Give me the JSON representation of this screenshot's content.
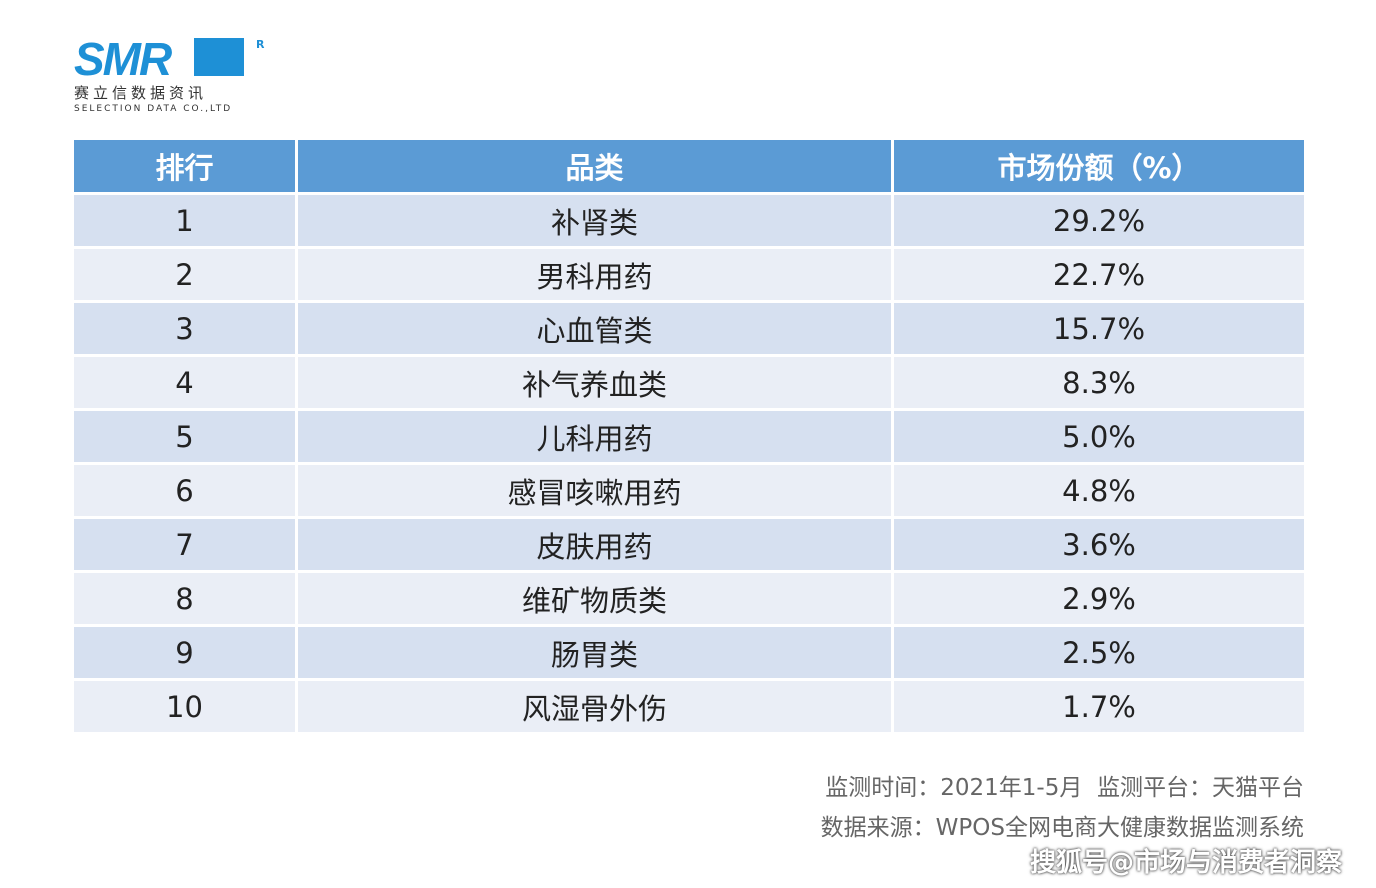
{
  "logo": {
    "mark": "SMR",
    "registered": "R",
    "name": "赛立信数据资讯",
    "english": "SELECTION DATA CO.,LTD"
  },
  "table": {
    "header": [
      "排行",
      "品类",
      "市场份额（%）"
    ],
    "rows": [
      [
        "1",
        "补肾类",
        "29.2%"
      ],
      [
        "2",
        "男科用药",
        "22.7%"
      ],
      [
        "3",
        "心血管类",
        "15.7%"
      ],
      [
        "4",
        "补气养血类",
        "8.3%"
      ],
      [
        "5",
        "儿科用药",
        "5.0%"
      ],
      [
        "6",
        "感冒咳嗽用药",
        "4.8%"
      ],
      [
        "7",
        "皮肤用药",
        "3.6%"
      ],
      [
        "8",
        "维矿物质类",
        "2.9%"
      ],
      [
        "9",
        "肠胃类",
        "2.5%"
      ],
      [
        "10",
        "风湿骨外伤",
        "1.7%"
      ]
    ]
  },
  "notes": [
    "监测时间：2021年1-5月  监测平台：天猫平台",
    "数据来源：WPOS全网电商大健康数据监测系统"
  ],
  "watermark": "搜狐号@市场与消费者洞察"
}
